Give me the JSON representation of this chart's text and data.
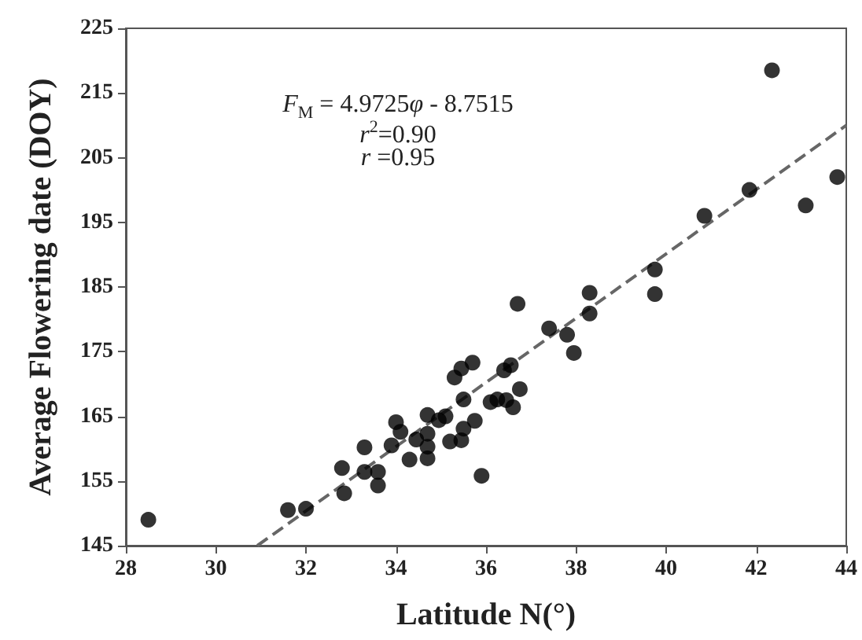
{
  "chart_data": {
    "type": "scatter",
    "xlabel": "Latitude N(°)",
    "ylabel": "Average Flowering date (DOY)",
    "annotations": [
      "F$_{M}$ = 4.9725φ - 8.7515",
      "r$^{2}$=0.90",
      "r =0.95"
    ],
    "xlim": [
      28,
      44
    ],
    "xticks": [
      28,
      30,
      32,
      34,
      36,
      38,
      40,
      42,
      44
    ],
    "ylim": [
      145,
      225
    ],
    "yticks": [
      145,
      155,
      165,
      175,
      185,
      195,
      205,
      215,
      225
    ],
    "grid": false,
    "series": [
      {
        "color": "#000000",
        "marker": "circle",
        "x": [
          28.5,
          31.6,
          32.0,
          32.8,
          32.85,
          33.3,
          33.3,
          33.6,
          33.6,
          33.9,
          34.0,
          34.1,
          34.3,
          34.45,
          34.7,
          34.7,
          34.7,
          34.7,
          34.95,
          35.1,
          35.2,
          35.45,
          35.5,
          35.5,
          35.3,
          35.45,
          35.7,
          35.9,
          35.75,
          36.1,
          36.25,
          36.45,
          36.6,
          36.75,
          36.4,
          36.55,
          36.7,
          37.4,
          37.8,
          37.95,
          38.3,
          38.3,
          39.75,
          39.75,
          40.85,
          41.85,
          42.35,
          43.1,
          43.8
        ],
        "values": [
          149,
          150.5,
          150.7,
          157,
          153.1,
          160.2,
          156.4,
          156.4,
          154.3,
          160.5,
          164.1,
          162.6,
          158.3,
          161.4,
          165.2,
          162.3,
          160.3,
          158.5,
          164.4,
          165,
          161.1,
          161.3,
          163.1,
          167.6,
          171,
          172.4,
          173.3,
          155.8,
          164.3,
          167.2,
          167.6,
          167.5,
          166.4,
          169.2,
          172.1,
          172.9,
          182.4,
          178.6,
          177.6,
          174.8,
          184.1,
          180.9,
          187.7,
          183.9,
          196,
          200,
          218.5,
          197.6,
          202
        ]
      },
      {
        "type": "line",
        "color": "#666666",
        "line_style": "dashed",
        "marker": "none",
        "x": [
          30.92,
          44
        ],
        "values": [
          145,
          210
        ]
      }
    ]
  }
}
